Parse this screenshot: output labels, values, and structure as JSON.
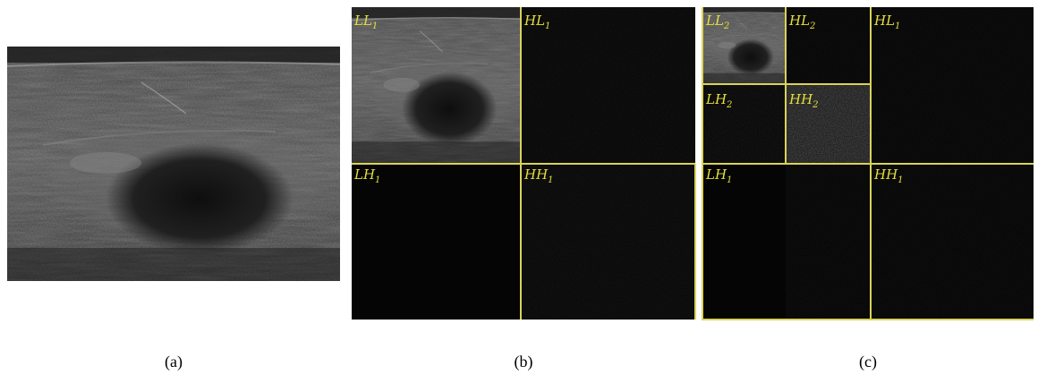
{
  "panels": [
    {
      "caption": "(a)"
    },
    {
      "caption": "(b)",
      "subbands": [
        {
          "base": "LL",
          "sub": "1"
        },
        {
          "base": "HL",
          "sub": "1"
        },
        {
          "base": "LH",
          "sub": "1"
        },
        {
          "base": "HH",
          "sub": "1"
        }
      ]
    },
    {
      "caption": "(c)",
      "subbands": [
        {
          "base": "LL",
          "sub": "2"
        },
        {
          "base": "HL",
          "sub": "2"
        },
        {
          "base": "LH",
          "sub": "2"
        },
        {
          "base": "HH",
          "sub": "2"
        },
        {
          "base": "HL",
          "sub": "1"
        },
        {
          "base": "LH",
          "sub": "1"
        },
        {
          "base": "HH",
          "sub": "1"
        }
      ]
    }
  ]
}
